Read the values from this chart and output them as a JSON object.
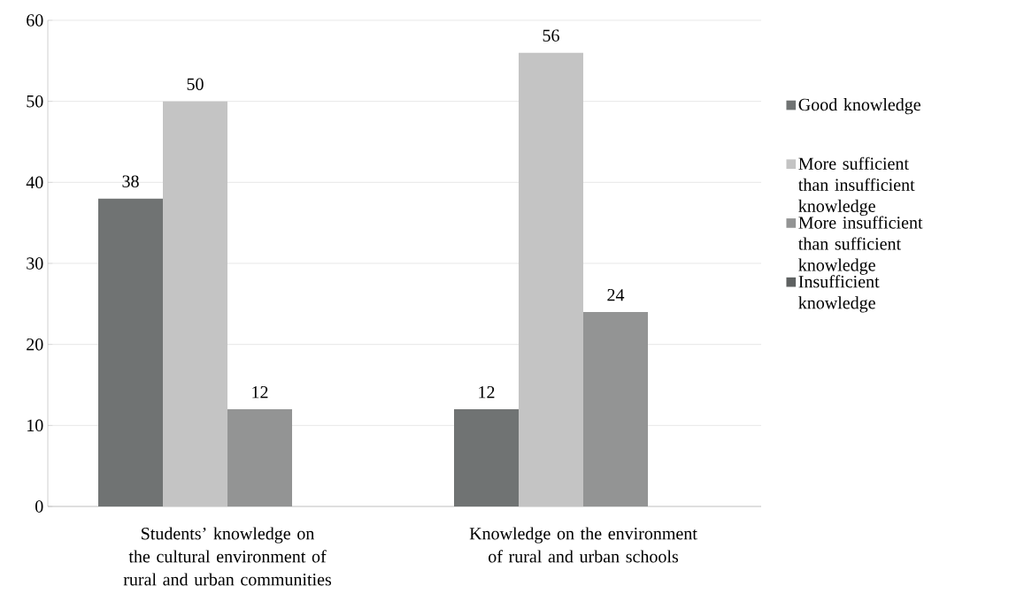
{
  "chart_data": {
    "type": "bar",
    "categories": [
      "Students’ knowledge on the cultural environment of rural and urban communities",
      "Knowledge on the environment of rural and urban schools"
    ],
    "series": [
      {
        "name": "Good knowledge",
        "color": "#707373",
        "values": [
          38,
          12
        ]
      },
      {
        "name": "More sufficient than insufficient knowledge",
        "color": "#c4c4c4",
        "values": [
          50,
          56
        ]
      },
      {
        "name": "More insufficient than sufficient knowledge",
        "color": "#939494",
        "values": [
          12,
          24
        ]
      },
      {
        "name": "Insufficient knowledge",
        "color": "#5e6161",
        "values": [
          null,
          null
        ]
      }
    ],
    "ylim": [
      0,
      60
    ],
    "yticks": [
      0,
      10,
      20,
      30,
      40,
      50,
      60
    ],
    "grid": "y",
    "legend": "right",
    "data_labels": true
  }
}
